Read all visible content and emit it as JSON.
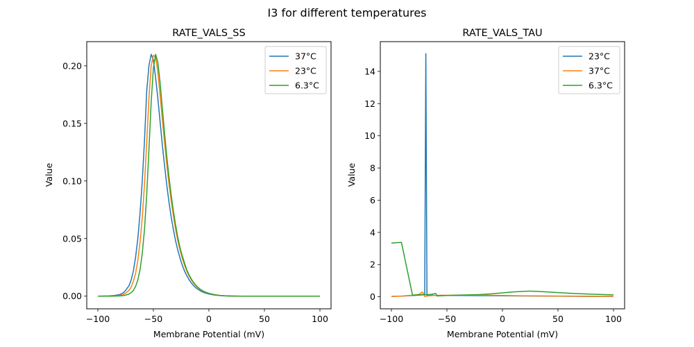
{
  "figure": {
    "suptitle": "I3 for different temperatures"
  },
  "chart_data": [
    {
      "type": "line",
      "title": "RATE_VALS_SS",
      "xlabel": "Membrane Potential (mV)",
      "ylabel": "Value",
      "xlim": [
        -110,
        110
      ],
      "ylim": [
        -0.011,
        0.221
      ],
      "xticks": [
        -100,
        -50,
        0,
        50,
        100
      ],
      "xtick_labels": [
        "−100",
        "−50",
        "0",
        "50",
        "100"
      ],
      "yticks": [
        0.0,
        0.05,
        0.1,
        0.15,
        0.2
      ],
      "ytick_labels": [
        "0.00",
        "0.05",
        "0.10",
        "0.15",
        "0.20"
      ],
      "grid": false,
      "legend_position": "top-right",
      "series": [
        {
          "name": "37°C",
          "color": "#1f77b4",
          "x": [
            -100,
            -90,
            -85,
            -80,
            -77,
            -75,
            -72,
            -70,
            -68,
            -66,
            -64,
            -62,
            -60,
            -58,
            -56,
            -54,
            -52,
            -50,
            -48,
            -46,
            -44,
            -42,
            -40,
            -38,
            -36,
            -34,
            -32,
            -30,
            -28,
            -26,
            -24,
            -22,
            -20,
            -18,
            -16,
            -14,
            -12,
            -10,
            -8,
            -6,
            -4,
            -2,
            0,
            5,
            10,
            15,
            20,
            30,
            40,
            50,
            60,
            70,
            80,
            90,
            100
          ],
          "y": [
            0.0,
            0.0002,
            0.0006,
            0.0015,
            0.003,
            0.005,
            0.009,
            0.014,
            0.022,
            0.034,
            0.05,
            0.072,
            0.1,
            0.135,
            0.178,
            0.2,
            0.21,
            0.205,
            0.19,
            0.172,
            0.152,
            0.132,
            0.114,
            0.097,
            0.082,
            0.069,
            0.058,
            0.048,
            0.04,
            0.033,
            0.027,
            0.022,
            0.018,
            0.0145,
            0.0117,
            0.0094,
            0.0075,
            0.006,
            0.0048,
            0.0038,
            0.003,
            0.0024,
            0.0019,
            0.001,
            0.0005,
            0.00025,
            0.0001,
            2e-05,
            0.0,
            0.0,
            0.0,
            0.0,
            0.0,
            0.0,
            0.0
          ]
        },
        {
          "name": "23°C",
          "color": "#ff7f0e",
          "x": [
            -100,
            -90,
            -85,
            -80,
            -77,
            -75,
            -72,
            -70,
            -68,
            -66,
            -64,
            -62,
            -60,
            -58,
            -56,
            -54,
            -52,
            -50,
            -48,
            -46,
            -44,
            -42,
            -40,
            -38,
            -36,
            -34,
            -32,
            -30,
            -28,
            -26,
            -24,
            -22,
            -20,
            -18,
            -16,
            -14,
            -12,
            -10,
            -8,
            -6,
            -4,
            -2,
            0,
            5,
            10,
            15,
            20,
            30,
            40,
            50,
            60,
            70,
            80,
            90,
            100
          ],
          "y": [
            0.0,
            0.0001,
            0.0003,
            0.0008,
            0.0016,
            0.0026,
            0.005,
            0.008,
            0.013,
            0.02,
            0.031,
            0.047,
            0.068,
            0.097,
            0.133,
            0.172,
            0.2,
            0.209,
            0.208,
            0.195,
            0.175,
            0.154,
            0.134,
            0.115,
            0.098,
            0.083,
            0.07,
            0.058,
            0.048,
            0.04,
            0.033,
            0.027,
            0.022,
            0.0178,
            0.0144,
            0.0116,
            0.0093,
            0.0074,
            0.0059,
            0.0047,
            0.0037,
            0.0029,
            0.0023,
            0.0012,
            0.0006,
            0.0003,
            0.00015,
            3e-05,
            0.0,
            0.0,
            0.0,
            0.0,
            0.0,
            0.0,
            0.0
          ]
        },
        {
          "name": "6.3°C",
          "color": "#2ca02c",
          "x": [
            -100,
            -90,
            -85,
            -80,
            -77,
            -75,
            -72,
            -70,
            -68,
            -66,
            -64,
            -62,
            -60,
            -58,
            -56,
            -54,
            -52,
            -50,
            -48,
            -46,
            -44,
            -42,
            -40,
            -38,
            -36,
            -34,
            -32,
            -30,
            -28,
            -26,
            -24,
            -22,
            -20,
            -18,
            -16,
            -14,
            -12,
            -10,
            -8,
            -6,
            -4,
            -2,
            0,
            5,
            10,
            15,
            20,
            30,
            40,
            50,
            60,
            70,
            80,
            90,
            100
          ],
          "y": [
            0.0,
            0.0,
            0.0001,
            0.0002,
            0.0005,
            0.0009,
            0.0018,
            0.003,
            0.005,
            0.0085,
            0.014,
            0.023,
            0.037,
            0.058,
            0.088,
            0.127,
            0.168,
            0.198,
            0.21,
            0.203,
            0.186,
            0.164,
            0.142,
            0.122,
            0.104,
            0.088,
            0.074,
            0.062,
            0.051,
            0.042,
            0.035,
            0.029,
            0.023,
            0.0188,
            0.0152,
            0.0122,
            0.0098,
            0.0078,
            0.0062,
            0.0049,
            0.0039,
            0.0031,
            0.0024,
            0.0013,
            0.0006,
            0.0003,
            0.00015,
            3e-05,
            0.0,
            0.0,
            0.0,
            0.0,
            0.0,
            0.0,
            0.0
          ]
        }
      ]
    },
    {
      "type": "line",
      "title": "RATE_VALS_TAU",
      "xlabel": "Membrane Potential (mV)",
      "ylabel": "Value",
      "xlim": [
        -110,
        110
      ],
      "ylim": [
        -0.75,
        15.85
      ],
      "xticks": [
        -100,
        -50,
        0,
        50,
        100
      ],
      "xtick_labels": [
        "−100",
        "−50",
        "0",
        "50",
        "100"
      ],
      "yticks": [
        0,
        2,
        4,
        6,
        8,
        10,
        12,
        14
      ],
      "ytick_labels": [
        "0",
        "2",
        "4",
        "6",
        "8",
        "10",
        "12",
        "14"
      ],
      "grid": false,
      "legend_position": "top-right",
      "series": [
        {
          "name": "23°C",
          "color": "#1f77b4",
          "x": [
            -100,
            -90,
            -80,
            -75,
            -72,
            -70,
            -69,
            -68,
            -67,
            -66,
            -65,
            -64,
            -62,
            -60,
            -50,
            -40,
            -20,
            0,
            20,
            40,
            60,
            80,
            100
          ],
          "y": [
            0.02,
            0.04,
            0.08,
            0.1,
            0.12,
            0.13,
            15.1,
            0.1,
            0.1,
            0.12,
            0.14,
            0.1,
            0.09,
            0.08,
            0.08,
            0.08,
            0.07,
            0.06,
            0.05,
            0.04,
            0.03,
            0.02,
            0.02
          ]
        },
        {
          "name": "37°C",
          "color": "#ff7f0e",
          "x": [
            -100,
            -90,
            -80,
            -75,
            -72,
            -70,
            -68,
            -66,
            -64,
            -62,
            -60,
            -58,
            -50,
            -40,
            -20,
            0,
            20,
            40,
            60,
            80,
            100
          ],
          "y": [
            0.02,
            0.05,
            0.1,
            0.15,
            0.3,
            0.02,
            0.05,
            0.06,
            0.07,
            0.08,
            0.08,
            0.09,
            0.09,
            0.1,
            0.1,
            0.08,
            0.06,
            0.05,
            0.04,
            0.03,
            0.02
          ]
        },
        {
          "name": "6.3°C",
          "color": "#2ca02c",
          "x": [
            -100,
            -95,
            -91,
            -81,
            -75,
            -72,
            -70,
            -65,
            -62,
            -60,
            -59,
            -50,
            -40,
            -30,
            -20,
            -10,
            0,
            10,
            20,
            25,
            30,
            40,
            50,
            60,
            70,
            80,
            90,
            100
          ],
          "y": [
            3.33,
            3.36,
            3.38,
            0.1,
            0.12,
            0.14,
            0.13,
            0.14,
            0.18,
            0.2,
            0.05,
            0.08,
            0.1,
            0.12,
            0.14,
            0.18,
            0.24,
            0.3,
            0.34,
            0.35,
            0.34,
            0.3,
            0.26,
            0.22,
            0.19,
            0.16,
            0.14,
            0.12
          ]
        }
      ]
    }
  ]
}
